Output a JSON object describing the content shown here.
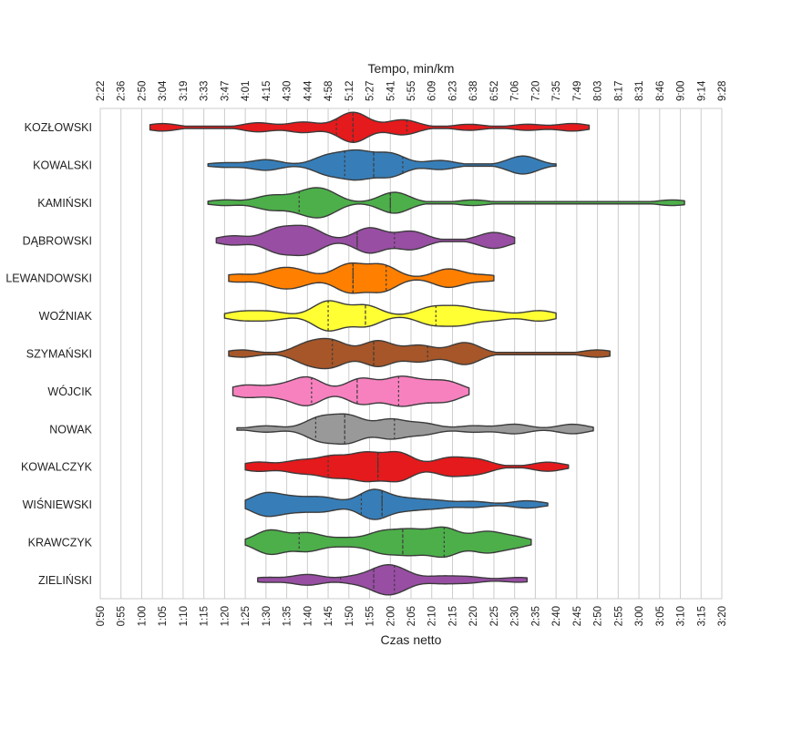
{
  "chart_data": {
    "type": "violin",
    "xlabel": "Czas netto",
    "x2label": "Tempo, min/km",
    "xlim": [
      "0:50",
      "3:20"
    ],
    "grid": true,
    "bottom_ticks": [
      "0:50",
      "0:55",
      "1:00",
      "1:05",
      "1:10",
      "1:15",
      "1:20",
      "1:25",
      "1:30",
      "1:35",
      "1:40",
      "1:45",
      "1:50",
      "1:55",
      "2:00",
      "2:05",
      "2:10",
      "2:15",
      "2:20",
      "2:25",
      "2:30",
      "2:35",
      "2:40",
      "2:45",
      "2:50",
      "2:55",
      "3:00",
      "3:05",
      "3:10",
      "3:15",
      "3:20"
    ],
    "top_ticks": [
      "2:22",
      "2:36",
      "2:50",
      "3:04",
      "3:19",
      "3:33",
      "3:47",
      "4:01",
      "4:15",
      "4:30",
      "4:44",
      "4:58",
      "5:12",
      "5:27",
      "5:41",
      "5:55",
      "6:09",
      "6:23",
      "6:38",
      "6:52",
      "7:06",
      "7:20",
      "7:35",
      "7:49",
      "8:03",
      "8:17",
      "8:31",
      "8:46",
      "9:00",
      "9:14",
      "9:28"
    ],
    "series": [
      {
        "name": "KOZŁOWSKI",
        "color": "#e41a1c",
        "min": "1:02",
        "max": "2:48",
        "quartiles": [
          "1:47",
          "1:51",
          "2:04"
        ],
        "modes": [
          [
            "1:05",
            0.25
          ],
          [
            "1:28",
            0.3
          ],
          [
            "1:39",
            0.35
          ],
          [
            "1:51",
            1.0
          ],
          [
            "2:03",
            0.5
          ],
          [
            "2:19",
            0.2
          ],
          [
            "2:33",
            0.2
          ],
          [
            "2:44",
            0.25
          ]
        ]
      },
      {
        "name": "KOWALSKI",
        "color": "#377eb8",
        "min": "1:16",
        "max": "2:40",
        "quartiles": [
          "1:49",
          "1:56",
          "2:03"
        ],
        "modes": [
          [
            "1:20",
            0.15
          ],
          [
            "1:30",
            0.35
          ],
          [
            "1:45",
            0.6
          ],
          [
            "1:52",
            0.85
          ],
          [
            "2:00",
            0.75
          ],
          [
            "2:12",
            0.3
          ],
          [
            "2:32",
            0.6
          ]
        ]
      },
      {
        "name": "KAMIŃSKI",
        "color": "#4daf4a",
        "min": "1:16",
        "max": "3:11",
        "quartiles": [
          "1:38",
          "2:00",
          "2:00"
        ],
        "modes": [
          [
            "1:20",
            0.2
          ],
          [
            "1:31",
            0.5
          ],
          [
            "1:39",
            0.55
          ],
          [
            "1:44",
            0.8
          ],
          [
            "2:01",
            0.75
          ],
          [
            "2:20",
            0.2
          ],
          [
            "3:08",
            0.2
          ]
        ]
      },
      {
        "name": "DĄBROWSKI",
        "color": "#984ea3",
        "min": "1:18",
        "max": "2:30",
        "quartiles": [
          "1:52",
          "1:52",
          "2:01"
        ],
        "modes": [
          [
            "1:22",
            0.2
          ],
          [
            "1:33",
            0.5
          ],
          [
            "1:40",
            0.55
          ],
          [
            "1:55",
            0.55
          ],
          [
            "2:05",
            0.4
          ],
          [
            "2:25",
            0.35
          ]
        ]
      },
      {
        "name": "LEWANDOWSKI",
        "color": "#ff7f00",
        "min": "1:21",
        "max": "2:25",
        "quartiles": [
          "1:51",
          "1:51",
          "1:59"
        ],
        "modes": [
          [
            "1:23",
            0.25
          ],
          [
            "1:33",
            0.5
          ],
          [
            "1:38",
            0.4
          ],
          [
            "1:50",
            0.9
          ],
          [
            "1:58",
            0.85
          ],
          [
            "2:14",
            0.6
          ],
          [
            "2:23",
            0.2
          ]
        ]
      },
      {
        "name": "WOŹNIAK",
        "color": "#ffff33",
        "min": "1:20",
        "max": "2:40",
        "quartiles": [
          "1:45",
          "1:54",
          "2:11"
        ],
        "modes": [
          [
            "1:24",
            0.2
          ],
          [
            "1:31",
            0.2
          ],
          [
            "1:45",
            0.7
          ],
          [
            "1:54",
            0.5
          ],
          [
            "2:10",
            0.4
          ],
          [
            "2:17",
            0.4
          ],
          [
            "2:25",
            0.2
          ],
          [
            "2:36",
            0.25
          ]
        ]
      },
      {
        "name": "SZYMAŃSKI",
        "color": "#a65628",
        "min": "1:21",
        "max": "2:53",
        "quartiles": [
          "1:46",
          "1:56",
          "2:09"
        ],
        "modes": [
          [
            "1:24",
            0.2
          ],
          [
            "1:40",
            0.5
          ],
          [
            "1:46",
            0.65
          ],
          [
            "1:57",
            0.7
          ],
          [
            "2:07",
            0.45
          ],
          [
            "2:18",
            0.6
          ],
          [
            "2:50",
            0.2
          ]
        ]
      },
      {
        "name": "WÓJCIK",
        "color": "#f781bf",
        "min": "1:22",
        "max": "2:19",
        "quartiles": [
          "1:41",
          "1:52",
          "2:02"
        ],
        "modes": [
          [
            "1:25",
            0.3
          ],
          [
            "1:33",
            0.25
          ],
          [
            "1:40",
            0.7
          ],
          [
            "1:53",
            0.65
          ],
          [
            "2:02",
            0.65
          ],
          [
            "2:08",
            0.35
          ],
          [
            "2:14",
            0.45
          ]
        ]
      },
      {
        "name": "NOWAK",
        "color": "#999999",
        "min": "1:23",
        "max": "2:49",
        "quartiles": [
          "1:42",
          "1:49",
          "2:01"
        ],
        "modes": [
          [
            "1:30",
            0.2
          ],
          [
            "1:43",
            0.7
          ],
          [
            "1:50",
            0.8
          ],
          [
            "2:00",
            0.6
          ],
          [
            "2:08",
            0.35
          ],
          [
            "2:20",
            0.2
          ],
          [
            "2:30",
            0.3
          ],
          [
            "2:44",
            0.3
          ]
        ]
      },
      {
        "name": "KOWALCZYK",
        "color": "#e41a1c",
        "min": "1:25",
        "max": "2:43",
        "quartiles": [
          "1:45",
          "1:57",
          "1:57"
        ],
        "modes": [
          [
            "1:28",
            0.3
          ],
          [
            "1:38",
            0.4
          ],
          [
            "1:46",
            0.65
          ],
          [
            "1:54",
            0.85
          ],
          [
            "2:02",
            0.9
          ],
          [
            "2:14",
            0.55
          ],
          [
            "2:21",
            0.45
          ],
          [
            "2:38",
            0.3
          ]
        ]
      },
      {
        "name": "WIŚNIEWSKI",
        "color": "#377eb8",
        "min": "1:25",
        "max": "2:38",
        "quartiles": [
          "1:53",
          "1:58",
          "1:58"
        ],
        "modes": [
          [
            "1:30",
            0.75
          ],
          [
            "1:37",
            0.4
          ],
          [
            "1:44",
            0.45
          ],
          [
            "1:56",
            1.0
          ],
          [
            "2:04",
            0.35
          ],
          [
            "2:11",
            0.25
          ],
          [
            "2:20",
            0.2
          ],
          [
            "2:33",
            0.25
          ]
        ]
      },
      {
        "name": "KRAWCZYK",
        "color": "#4daf4a",
        "min": "1:25",
        "max": "2:34",
        "quartiles": [
          "1:38",
          "2:03",
          "2:13"
        ],
        "modes": [
          [
            "1:31",
            0.6
          ],
          [
            "1:40",
            0.45
          ],
          [
            "1:49",
            0.2
          ],
          [
            "1:58",
            0.5
          ],
          [
            "2:05",
            0.55
          ],
          [
            "2:13",
            0.7
          ],
          [
            "2:23",
            0.5
          ],
          [
            "2:30",
            0.25
          ]
        ]
      },
      {
        "name": "ZIELIŃSKI",
        "color": "#984ea3",
        "min": "1:28",
        "max": "2:33",
        "quartiles": [
          "1:48",
          "1:56",
          "2:01"
        ],
        "modes": [
          [
            "1:30",
            0.25
          ],
          [
            "1:40",
            0.55
          ],
          [
            "1:51",
            0.3
          ],
          [
            "1:58",
            1.0
          ],
          [
            "2:02",
            0.8
          ],
          [
            "2:12",
            0.35
          ],
          [
            "2:19",
            0.3
          ],
          [
            "2:31",
            0.25
          ]
        ]
      }
    ]
  }
}
